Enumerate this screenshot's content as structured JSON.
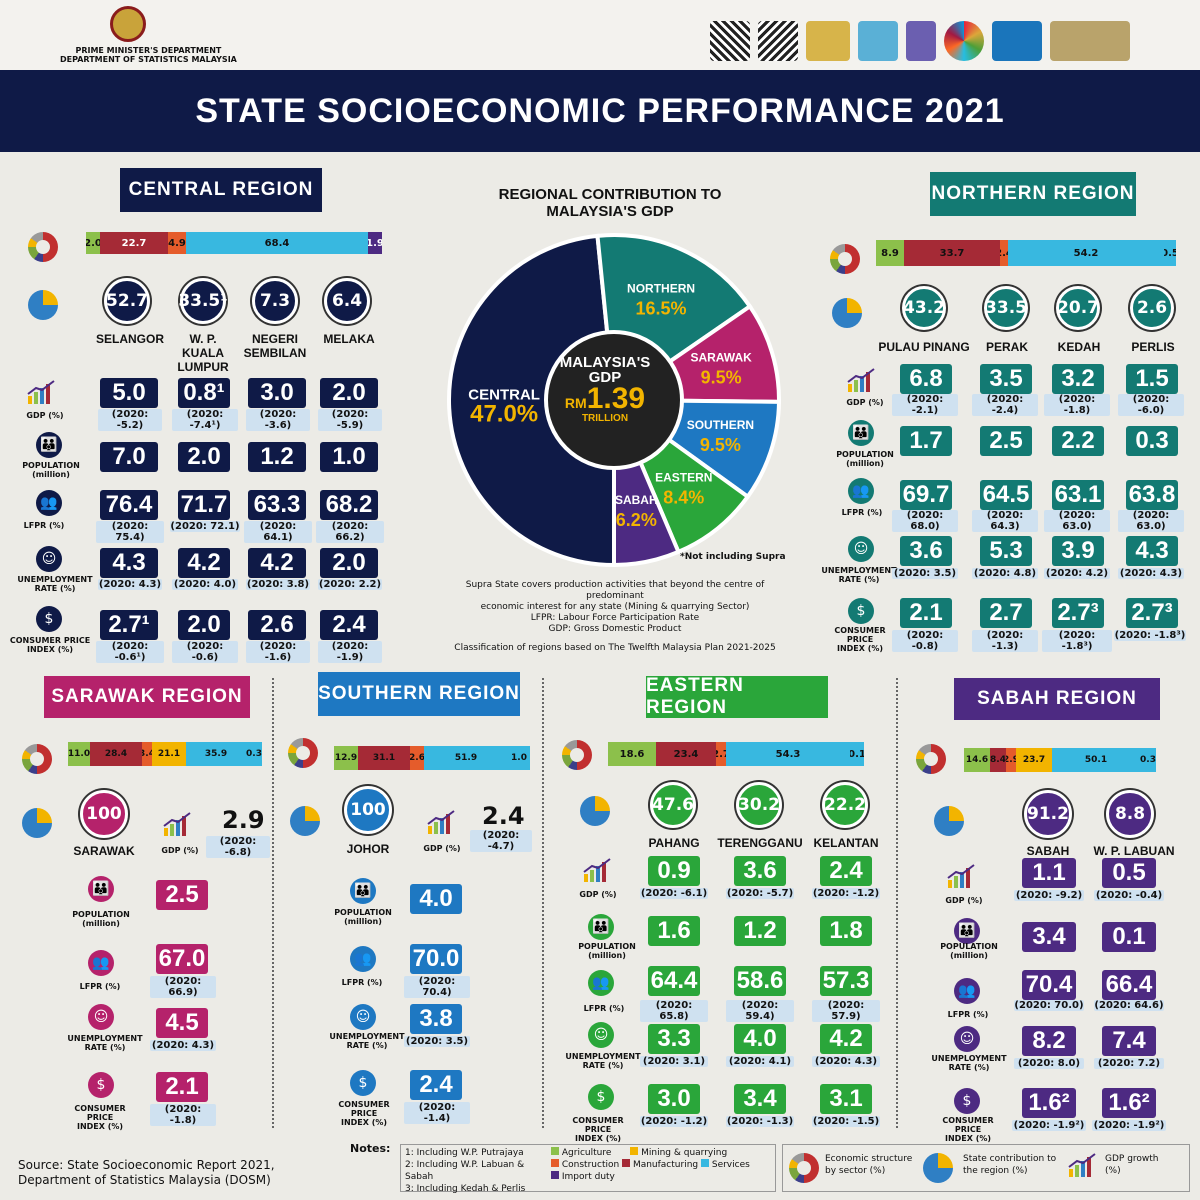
{
  "header": {
    "dept1": "PRIME MINISTER'S DEPARTMENT",
    "dept2": "DEPARTMENT OF STATISTICS MALAYSIA",
    "title": "STATE SOCIOECONOMIC PERFORMANCE 2021"
  },
  "gdp_panel": {
    "title1": "REGIONAL CONTRIBUTION TO",
    "title2": "MALAYSIA'S GDP",
    "center1": "MALAYSIA'S",
    "center2": "GDP",
    "rm": "RM",
    "amount": "1.39",
    "trillion": "TRILLION",
    "note": "*Not including Supra",
    "desc1": "Supra State covers production activities that beyond the centre of predominant",
    "desc2": "economic interest for any state (Mining & quarrying Sector)",
    "desc3": "LFPR: Labour Force Participation Rate",
    "desc4": "GDP: Gross Domestic Product",
    "desc5": "Classification of regions based on The Twelfth Malaysia Plan 2021-2025"
  },
  "chart_data": {
    "type": "pie",
    "labels": [
      "CENTRAL",
      "NORTHERN",
      "SARAWAK",
      "SOUTHERN",
      "EASTERN",
      "SABAH"
    ],
    "values": [
      47.0,
      16.5,
      9.5,
      9.5,
      8.4,
      6.2
    ],
    "display": [
      "47.0",
      "16.5",
      "9.5",
      "9.5",
      "8.4",
      "6.2"
    ],
    "colors": [
      "#0f1a47",
      "#137a73",
      "#b5226b",
      "#1e78c2",
      "#2aa63a",
      "#4d2a82"
    ]
  },
  "labels": {
    "gdp": "GDP (%)",
    "population": "POPULATION",
    "million": "(million)",
    "lfpr": "LFPR (%)",
    "unemp1": "UNEMPLOYMENT",
    "unemp2": "RATE (%)",
    "cpi1": "CONSUMER PRICE",
    "cpi2": "INDEX (%)"
  },
  "central": {
    "name": "CENTRAL REGION",
    "bar": [
      "2.0",
      "22.7",
      "4.9",
      "68.4",
      "1.9"
    ],
    "states": [
      {
        "share": "52.7",
        "name": "SELANGOR",
        "gdp": "5.0",
        "gdp_prev": "(2020: -5.2)",
        "pop": "7.0",
        "lfpr": "76.4",
        "lfpr_prev": "(2020: 75.4)",
        "unemp": "4.3",
        "unemp_prev": "(2020: 4.3)",
        "cpi": "2.7¹",
        "cpi_prev": "(2020: -0.6¹)"
      },
      {
        "share": "33.5¹",
        "name": "W. P. KUALA LUMPUR",
        "gdp": "0.8¹",
        "gdp_prev": "(2020: -7.4¹)",
        "pop": "2.0",
        "lfpr": "71.7",
        "lfpr_prev": "(2020: 72.1)",
        "unemp": "4.2",
        "unemp_prev": "(2020: 4.0)",
        "cpi": "2.0",
        "cpi_prev": "(2020: -0.6)"
      },
      {
        "share": "7.3",
        "name": "NEGERI SEMBILAN",
        "gdp": "3.0",
        "gdp_prev": "(2020: -3.6)",
        "pop": "1.2",
        "lfpr": "63.3",
        "lfpr_prev": "(2020: 64.1)",
        "unemp": "4.2",
        "unemp_prev": "(2020: 3.8)",
        "cpi": "2.6",
        "cpi_prev": "(2020: -1.6)"
      },
      {
        "share": "6.4",
        "name": "MELAKA",
        "gdp": "2.0",
        "gdp_prev": "(2020: -5.9)",
        "pop": "1.0",
        "lfpr": "68.2",
        "lfpr_prev": "(2020: 66.2)",
        "unemp": "2.0",
        "unemp_prev": "(2020: 2.2)",
        "cpi": "2.4",
        "cpi_prev": "(2020: -1.9)"
      }
    ]
  },
  "northern": {
    "name": "NORTHERN REGION",
    "bar": [
      "8.9",
      "33.7",
      "2.4",
      "54.2",
      "0.5"
    ],
    "states": [
      {
        "share": "43.2",
        "name": "PULAU PINANG",
        "gdp": "6.8",
        "gdp_prev": "(2020: -2.1)",
        "pop": "1.7",
        "lfpr": "69.7",
        "lfpr_prev": "(2020: 68.0)",
        "unemp": "3.6",
        "unemp_prev": "(2020: 3.5)",
        "cpi": "2.1",
        "cpi_prev": "(2020: -0.8)"
      },
      {
        "share": "33.5",
        "name": "PERAK",
        "gdp": "3.5",
        "gdp_prev": "(2020: -2.4)",
        "pop": "2.5",
        "lfpr": "64.5",
        "lfpr_prev": "(2020: 64.3)",
        "unemp": "5.3",
        "unemp_prev": "(2020: 4.8)",
        "cpi": "2.7",
        "cpi_prev": "(2020: -1.3)"
      },
      {
        "share": "20.7",
        "name": "KEDAH",
        "gdp": "3.2",
        "gdp_prev": "(2020: -1.8)",
        "pop": "2.2",
        "lfpr": "63.1",
        "lfpr_prev": "(2020: 63.0)",
        "unemp": "3.9",
        "unemp_prev": "(2020: 4.2)",
        "cpi": "2.7³",
        "cpi_prev": "(2020: -1.8³)"
      },
      {
        "share": "2.6",
        "name": "PERLIS",
        "gdp": "1.5",
        "gdp_prev": "(2020: -6.0)",
        "pop": "0.3",
        "lfpr": "63.8",
        "lfpr_prev": "(2020: 63.0)",
        "unemp": "4.3",
        "unemp_prev": "(2020: 4.3)",
        "cpi": "2.7³",
        "cpi_prev": "(2020: -1.8³)"
      }
    ]
  },
  "sarawak": {
    "name": "SARAWAK REGION",
    "bar": [
      "11.0",
      "28.4",
      "3.4",
      "21.1",
      "35.9",
      "0.3"
    ],
    "share": "100",
    "state": "SARAWAK",
    "gdp": "2.9",
    "gdp_prev": "(2020: -6.8)",
    "pop": "2.5",
    "lfpr": "67.0",
    "lfpr_prev": "(2020: 66.9)",
    "unemp": "4.5",
    "unemp_prev": "(2020: 4.3)",
    "cpi": "2.1",
    "cpi_prev": "(2020: -1.8)"
  },
  "southern": {
    "name": "SOUTHERN REGION",
    "bar": [
      "12.9",
      "31.1",
      "2.6",
      "51.9",
      "1.0"
    ],
    "share": "100",
    "state": "JOHOR",
    "gdp": "2.4",
    "gdp_prev": "(2020: -4.7)",
    "pop": "4.0",
    "lfpr": "70.0",
    "lfpr_prev": "(2020: 70.4)",
    "unemp": "3.8",
    "unemp_prev": "(2020: 3.5)",
    "cpi": "2.4",
    "cpi_prev": "(2020: -1.4)"
  },
  "eastern": {
    "name": "EASTERN REGION",
    "bar": [
      "18.6",
      "23.4",
      "2.7",
      "54.3",
      "0.1"
    ],
    "states": [
      {
        "share": "47.6",
        "name": "PAHANG",
        "gdp": "0.9",
        "gdp_prev": "(2020: -6.1)",
        "pop": "1.6",
        "lfpr": "64.4",
        "lfpr_prev": "(2020: 65.8)",
        "unemp": "3.3",
        "unemp_prev": "(2020: 3.1)",
        "cpi": "3.0",
        "cpi_prev": "(2020: -1.2)"
      },
      {
        "share": "30.2",
        "name": "TERENGGANU",
        "gdp": "3.6",
        "gdp_prev": "(2020: -5.7)",
        "pop": "1.2",
        "lfpr": "58.6",
        "lfpr_prev": "(2020: 59.4)",
        "unemp": "4.0",
        "unemp_prev": "(2020: 4.1)",
        "cpi": "3.4",
        "cpi_prev": "(2020: -1.3)"
      },
      {
        "share": "22.2",
        "name": "KELANTAN",
        "gdp": "2.4",
        "gdp_prev": "(2020: -1.2)",
        "pop": "1.8",
        "lfpr": "57.3",
        "lfpr_prev": "(2020: 57.9)",
        "unemp": "4.2",
        "unemp_prev": "(2020: 4.3)",
        "cpi": "3.1",
        "cpi_prev": "(2020: -1.5)"
      }
    ]
  },
  "sabah": {
    "name": "SABAH REGION",
    "bar": [
      "14.6",
      "8.4",
      "2.9",
      "23.7",
      "50.1",
      "0.3"
    ],
    "states": [
      {
        "share": "91.2",
        "name": "SABAH",
        "gdp": "1.1",
        "gdp_prev": "(2020: -9.2)",
        "pop": "3.4",
        "lfpr": "70.4",
        "lfpr_prev": "(2020: 70.0)",
        "unemp": "8.2",
        "unemp_prev": "(2020: 8.0)",
        "cpi": "1.6²",
        "cpi_prev": "(2020: -1.9²)"
      },
      {
        "share": "8.8",
        "name": "W. P. LABUAN",
        "gdp": "0.5",
        "gdp_prev": "(2020: -0.4)",
        "pop": "0.1",
        "lfpr": "66.4",
        "lfpr_prev": "(2020: 64.6)",
        "unemp": "7.4",
        "unemp_prev": "(2020: 7.2)",
        "cpi": "1.6²",
        "cpi_prev": "(2020: -1.9²)"
      }
    ]
  },
  "notes": {
    "title": "Notes:",
    "n1": "1: Including W.P. Putrajaya",
    "n2": "2: Including W.P. Labuan & Sabah",
    "n3": "3: Including Kedah & Perlis",
    "agri": "Agriculture",
    "mining": "Mining & quarrying",
    "cons": "Construction",
    "manu": "Manufacturing",
    "serv": "Services",
    "imp": "Import duty",
    "leg1": "Economic structure by sector (%)",
    "leg2": "State contribution to the region (%)",
    "leg3": "GDP growth (%)"
  },
  "source": {
    "l1": "Source: State Socioeconomic Report 2021,",
    "l2": "Department of Statistics Malaysia (DOSM)"
  }
}
